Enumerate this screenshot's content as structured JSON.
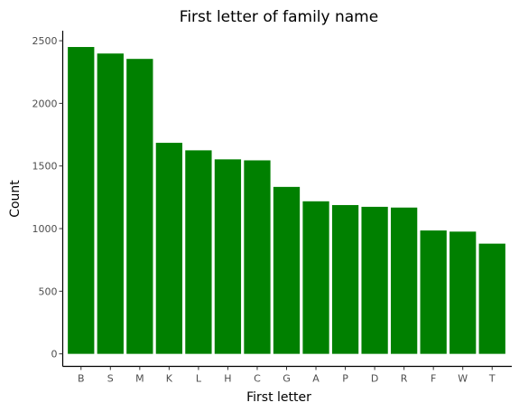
{
  "chart_data": {
    "type": "bar",
    "title": "First letter of family name",
    "xlabel": "First letter",
    "ylabel": "Count",
    "categories": [
      "B",
      "S",
      "M",
      "K",
      "L",
      "H",
      "C",
      "G",
      "A",
      "P",
      "D",
      "R",
      "F",
      "W",
      "T"
    ],
    "values": [
      2450,
      2398,
      2355,
      1685,
      1625,
      1553,
      1545,
      1333,
      1218,
      1188,
      1174,
      1168,
      985,
      976,
      880
    ],
    "ylim": [
      -100,
      2580
    ],
    "yticks": [
      0,
      500,
      1000,
      1500,
      2000,
      2500
    ],
    "bar_color": "#008000",
    "grid": false
  }
}
